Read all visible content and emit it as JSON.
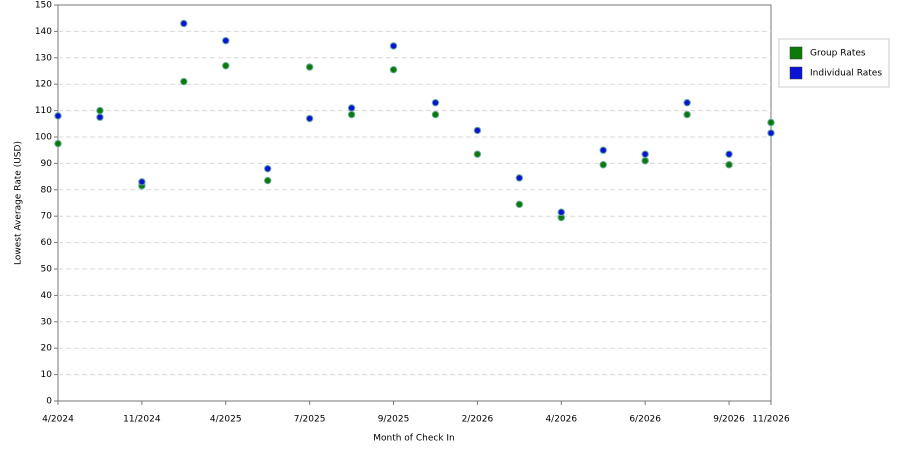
{
  "chart_data": {
    "type": "line",
    "x_label": "Month of Check In",
    "y_label": "Lowest Average Rate (USD)",
    "categories": [
      "4/2024",
      null,
      "11/2024",
      null,
      "4/2025",
      null,
      "7/2025",
      null,
      "9/2025",
      null,
      "2/2026",
      null,
      "4/2026",
      null,
      "6/2026",
      null,
      "9/2026",
      "11/2026"
    ],
    "series": [
      {
        "name": "Group Rates",
        "color": "#0b7a0b",
        "values": [
          97.5,
          110,
          81.5,
          121,
          127,
          83.5,
          126.5,
          108.5,
          125.5,
          108.5,
          93.5,
          74.5,
          69.5,
          89.5,
          91,
          108.5,
          89.5,
          105.5
        ]
      },
      {
        "name": "Individual Rates",
        "color": "#0a14d6",
        "values": [
          108,
          107.5,
          83,
          143,
          136.5,
          88,
          107,
          111,
          134.5,
          113,
          102.5,
          84.5,
          71.5,
          95,
          93.5,
          113,
          93.5,
          101.5
        ]
      }
    ],
    "ylim": [
      0,
      150
    ],
    "yticks": [
      0,
      10,
      20,
      30,
      40,
      50,
      60,
      70,
      80,
      90,
      100,
      110,
      120,
      130,
      140,
      150
    ],
    "grid": true,
    "legend": "right"
  }
}
